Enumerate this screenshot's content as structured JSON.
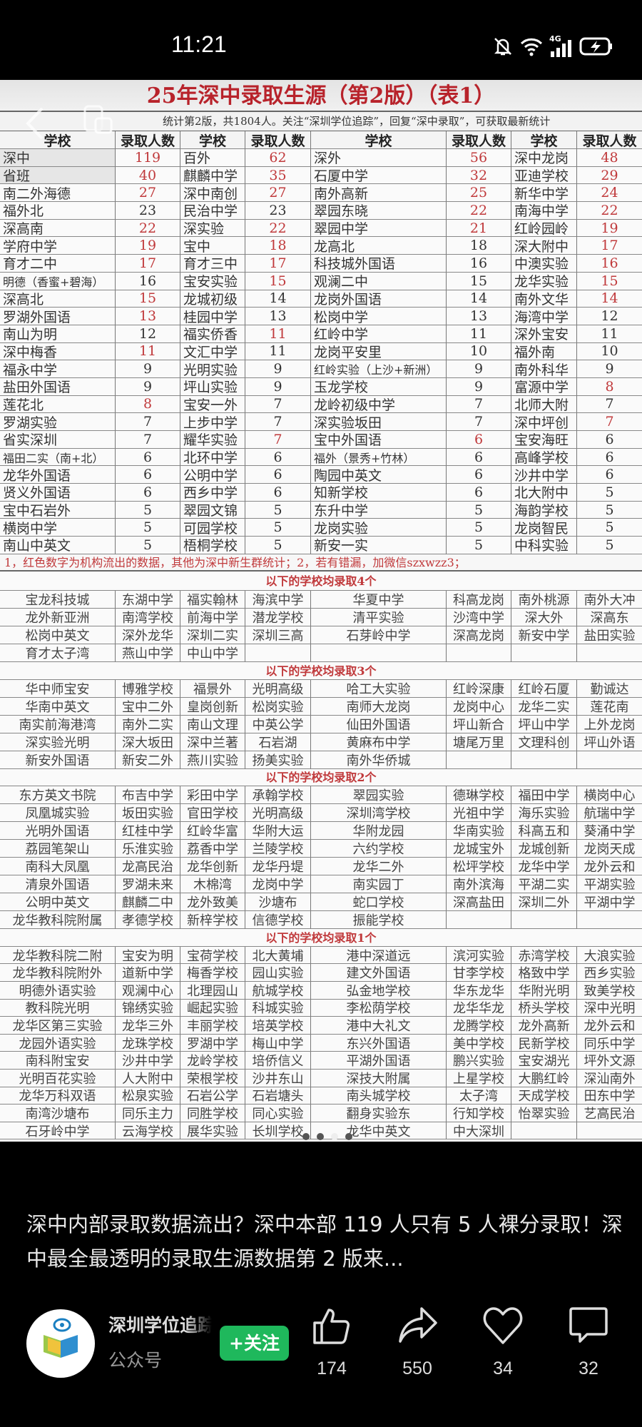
{
  "status_bar": {
    "time": "11:21",
    "network": "4G",
    "icons": [
      "mute-bell-icon",
      "wifi-icon",
      "signal-icon",
      "battery-charging-icon"
    ]
  },
  "sheet": {
    "title": "25年深中录取生源（第2版）（表1）",
    "subtitle": "统计第2版，共1804人。关注“深圳学位追踪”，回复“深中录取”，可获取最新统计",
    "headers": [
      "学校",
      "录取人数",
      "学校",
      "录取人数",
      "学校",
      "录取人数",
      "学校",
      "录取人数"
    ],
    "red_color": "#c0393b",
    "rows": [
      [
        {
          "s": "深中",
          "n": 119,
          "red": true
        },
        {
          "s": "百外",
          "n": 62,
          "red": true
        },
        {
          "s": "深外",
          "n": 56,
          "red": true
        },
        {
          "s": "深中龙岗",
          "n": 48,
          "red": true
        }
      ],
      [
        {
          "s": "省班",
          "n": 40,
          "red": true
        },
        {
          "s": "麒麟中学",
          "n": 35,
          "red": true
        },
        {
          "s": "石厦中学",
          "n": 32,
          "red": true
        },
        {
          "s": "亚迪学校",
          "n": 29,
          "red": true
        }
      ],
      [
        {
          "s": "南二外海德",
          "n": 27,
          "red": true
        },
        {
          "s": "深中南创",
          "n": 27,
          "red": true
        },
        {
          "s": "南外高新",
          "n": 25,
          "red": true
        },
        {
          "s": "新华中学",
          "n": 24,
          "red": true
        }
      ],
      [
        {
          "s": "福外北",
          "n": 23,
          "red": false
        },
        {
          "s": "民治中学",
          "n": 23,
          "red": false
        },
        {
          "s": "翠园东晓",
          "n": 22,
          "red": true
        },
        {
          "s": "南海中学",
          "n": 22,
          "red": true
        }
      ],
      [
        {
          "s": "深高南",
          "n": 22,
          "red": true
        },
        {
          "s": "深实验",
          "n": 22,
          "red": true
        },
        {
          "s": "翠园中学",
          "n": 21,
          "red": true
        },
        {
          "s": "红岭园岭",
          "n": 19,
          "red": true
        }
      ],
      [
        {
          "s": "学府中学",
          "n": 19,
          "red": true
        },
        {
          "s": "宝中",
          "n": 18,
          "red": true
        },
        {
          "s": "龙高北",
          "n": 18,
          "red": false
        },
        {
          "s": "深大附中",
          "n": 17,
          "red": true
        }
      ],
      [
        {
          "s": "育才二中",
          "n": 17,
          "red": true
        },
        {
          "s": "育才三中",
          "n": 17,
          "red": true
        },
        {
          "s": "科技城外国语",
          "n": 16,
          "red": false
        },
        {
          "s": "中澳实验",
          "n": 16,
          "red": true
        }
      ],
      [
        {
          "s": "明德（香蜜+碧海）",
          "n": 16,
          "red": false
        },
        {
          "s": "宝安实验",
          "n": 15,
          "red": true
        },
        {
          "s": "观澜二中",
          "n": 15,
          "red": false
        },
        {
          "s": "龙华实验",
          "n": 15,
          "red": true
        }
      ],
      [
        {
          "s": "深高北",
          "n": 15,
          "red": true
        },
        {
          "s": "龙城初级",
          "n": 14,
          "red": false
        },
        {
          "s": "龙岗外国语",
          "n": 14,
          "red": false
        },
        {
          "s": "南外文华",
          "n": 14,
          "red": true
        }
      ],
      [
        {
          "s": "罗湖外国语",
          "n": 13,
          "red": true
        },
        {
          "s": "桂园中学",
          "n": 13,
          "red": false
        },
        {
          "s": "松岗中学",
          "n": 13,
          "red": false
        },
        {
          "s": "海湾中学",
          "n": 12,
          "red": false
        }
      ],
      [
        {
          "s": "南山为明",
          "n": 12,
          "red": false
        },
        {
          "s": "福实侨香",
          "n": 11,
          "red": true
        },
        {
          "s": "红岭中学",
          "n": 11,
          "red": false
        },
        {
          "s": "深外宝安",
          "n": 11,
          "red": false
        }
      ],
      [
        {
          "s": "深中梅香",
          "n": 11,
          "red": true
        },
        {
          "s": "文汇中学",
          "n": 11,
          "red": false
        },
        {
          "s": "龙岗平安里",
          "n": 10,
          "red": false
        },
        {
          "s": "福外南",
          "n": 10,
          "red": false
        }
      ],
      [
        {
          "s": "福永中学",
          "n": 9,
          "red": false
        },
        {
          "s": "光明实验",
          "n": 9,
          "red": false
        },
        {
          "s": "红岭实验（上沙+新洲）",
          "n": 9,
          "red": false
        },
        {
          "s": "南外科华",
          "n": 9,
          "red": false
        }
      ],
      [
        {
          "s": "盐田外国语",
          "n": 9,
          "red": false
        },
        {
          "s": "坪山实验",
          "n": 9,
          "red": false
        },
        {
          "s": "玉龙学校",
          "n": 9,
          "red": false
        },
        {
          "s": "富源中学",
          "n": 8,
          "red": true
        }
      ],
      [
        {
          "s": "莲花北",
          "n": 8,
          "red": true
        },
        {
          "s": "宝安一外",
          "n": 7,
          "red": false
        },
        {
          "s": "龙岭初级中学",
          "n": 7,
          "red": false
        },
        {
          "s": "北师大附",
          "n": 7,
          "red": false
        }
      ],
      [
        {
          "s": "罗湖实验",
          "n": 7,
          "red": false
        },
        {
          "s": "上步中学",
          "n": 7,
          "red": false
        },
        {
          "s": "深实验坂田",
          "n": 7,
          "red": false
        },
        {
          "s": "深中坪创",
          "n": 7,
          "red": true
        }
      ],
      [
        {
          "s": "省实深圳",
          "n": 7,
          "red": false
        },
        {
          "s": "耀华实验",
          "n": 7,
          "red": true
        },
        {
          "s": "宝中外国语",
          "n": 6,
          "red": true
        },
        {
          "s": "宝安海旺",
          "n": 6,
          "red": false
        }
      ],
      [
        {
          "s": "福田二实（南+北）",
          "n": 6,
          "red": false
        },
        {
          "s": "北环中学",
          "n": 6,
          "red": false
        },
        {
          "s": "福外（景秀+竹林）",
          "n": 6,
          "red": false
        },
        {
          "s": "高峰学校",
          "n": 6,
          "red": false
        }
      ],
      [
        {
          "s": "龙华外国语",
          "n": 6,
          "red": false
        },
        {
          "s": "公明中学",
          "n": 6,
          "red": false
        },
        {
          "s": "陶园中英文",
          "n": 6,
          "red": false
        },
        {
          "s": "沙井中学",
          "n": 6,
          "red": false
        }
      ],
      [
        {
          "s": "贤义外国语",
          "n": 6,
          "red": false
        },
        {
          "s": "西乡中学",
          "n": 6,
          "red": false
        },
        {
          "s": "知新学校",
          "n": 6,
          "red": false
        },
        {
          "s": "北大附中",
          "n": 5,
          "red": false
        }
      ],
      [
        {
          "s": "宝中石岩外",
          "n": 5,
          "red": false
        },
        {
          "s": "翠园文锦",
          "n": 5,
          "red": false
        },
        {
          "s": "东升中学",
          "n": 5,
          "red": false
        },
        {
          "s": "海韵学校",
          "n": 5,
          "red": false
        }
      ],
      [
        {
          "s": "横岗中学",
          "n": 5,
          "red": false
        },
        {
          "s": "可园学校",
          "n": 5,
          "red": false
        },
        {
          "s": "龙岗实验",
          "n": 5,
          "red": false
        },
        {
          "s": "龙岗智民",
          "n": 5,
          "red": false
        }
      ],
      [
        {
          "s": "南山中英文",
          "n": 5,
          "red": false
        },
        {
          "s": "梧桐学校",
          "n": 5,
          "red": false
        },
        {
          "s": "新安一实",
          "n": 5,
          "red": false
        },
        {
          "s": "中科实验",
          "n": 5,
          "red": false
        }
      ]
    ],
    "note": "1，红色数字为机构流出的数据，其他为深中新生群统计；2，若有错漏，加微信szxwzz3；",
    "sections": [
      {
        "title": "以下的学校均录取4个",
        "rows": [
          [
            "宝龙科技城",
            "东湖中学",
            "福实翰林",
            "海滨中学",
            "华夏中学",
            "科高龙岗",
            "南外桃源",
            "南外大冲"
          ],
          [
            "龙外新亚洲",
            "南湾学校",
            "前海中学",
            "潜龙学校",
            "清平实验",
            "沙湾中学",
            "深大外",
            "深高东"
          ],
          [
            "松岗中英文",
            "深外龙华",
            "深圳二实",
            "深圳三高",
            "石芽岭中学",
            "深高龙岗",
            "新安中学",
            "盐田实验"
          ],
          [
            "育才太子湾",
            "燕山中学",
            "中山中学",
            "",
            "",
            "",
            "",
            ""
          ]
        ]
      },
      {
        "title": "以下的学校均录取3个",
        "rows": [
          [
            "华中师宝安",
            "博雅学校",
            "福景外",
            "光明高级",
            "哈工大实验",
            "红岭深康",
            "红岭石厦",
            "勤诚达"
          ],
          [
            "华南中英文",
            "宝中二外",
            "皇岗创新",
            "松岗实验",
            "南师大龙岗",
            "龙岗中心",
            "龙华二实",
            "莲花南"
          ],
          [
            "南实前海港湾",
            "南外二实",
            "南山文理",
            "中英公学",
            "仙田外国语",
            "坪山新合",
            "坪山中学",
            "上外龙岗"
          ],
          [
            "深实验光明",
            "深大坂田",
            "深中兰著",
            "石岩湖",
            "黄麻布中学",
            "塘尾万里",
            "文理科创",
            "坪山外语"
          ],
          [
            "新安外国语",
            "新安二外",
            "燕川实验",
            "扬美实验",
            "南外华侨城",
            "",
            "",
            ""
          ]
        ]
      },
      {
        "title": "以下的学校均录取2个",
        "rows": [
          [
            "东方英文书院",
            "布吉中学",
            "彩田中学",
            "承翰学校",
            "翠园实验",
            "德琳学校",
            "福田中学",
            "横岗中心"
          ],
          [
            "凤凰城实验",
            "坂田实验",
            "官田学校",
            "光明高级",
            "深圳湾学校",
            "光祖中学",
            "海乐实验",
            "航瑞中学"
          ],
          [
            "光明外国语",
            "红桂中学",
            "红岭华富",
            "华附大运",
            "华附龙园",
            "华南实验",
            "科高五和",
            "葵涌中学"
          ],
          [
            "荔园笔架山",
            "乐淮实验",
            "荔香中学",
            "兰陵学校",
            "六约学校",
            "龙城宝外",
            "龙城创新",
            "龙岗天成"
          ],
          [
            "南科大凤凰",
            "龙高民治",
            "龙华创新",
            "龙华丹堤",
            "龙华二外",
            "松坪学校",
            "龙华中学",
            "龙外云和"
          ],
          [
            "清泉外国语",
            "罗湖未来",
            "木棉湾",
            "龙岗中学",
            "南实园丁",
            "南外滨海",
            "平湖二实",
            "平湖实验"
          ],
          [
            "公明中英文",
            "麒麟二中",
            "龙外致美",
            "沙塘布",
            "蛇口学校",
            "深高盐田",
            "深圳二外",
            "平湖中学"
          ],
          [
            "龙华教科院附属",
            "孝德学校",
            "新梓学校",
            "信德学校",
            "振能学校",
            "",
            "",
            ""
          ]
        ]
      },
      {
        "title": "以下的学校均录取1个",
        "rows": [
          [
            "龙华教科院二附",
            "宝安为明",
            "宝荷学校",
            "北大黄埔",
            "港中深道远",
            "滨河实验",
            "赤湾学校",
            "大浪实验"
          ],
          [
            "龙华教科院附外",
            "道新中学",
            "梅香学校",
            "园山实验",
            "建文外国语",
            "甘李学校",
            "格致中学",
            "西乡实验"
          ],
          [
            "明德外语实验",
            "观澜中心",
            "北理园山",
            "航城学校",
            "弘金地学校",
            "华东龙华",
            "华附光明",
            "致美学校"
          ],
          [
            "教科院光明",
            "锦绣实验",
            "崛起实验",
            "科城实验",
            "李松荫学校",
            "龙华华龙",
            "桥头学校",
            "深中光明"
          ],
          [
            "龙华区第三实验",
            "龙华三外",
            "丰丽学校",
            "培英学校",
            "港中大礼文",
            "龙腾学校",
            "龙外高新",
            "龙外云和"
          ],
          [
            "龙园外语实验",
            "龙珠学校",
            "罗湖中学",
            "梅山中学",
            "东兴外国语",
            "美中学校",
            "民新学校",
            "同乐中学"
          ],
          [
            "南科附宝安",
            "沙井中学",
            "龙岭学校",
            "培侨信义",
            "平湖外国语",
            "鹏兴实验",
            "宝安湖光",
            "坪外文源"
          ],
          [
            "光明百花实验",
            "人大附中",
            "荣根学校",
            "沙井东山",
            "深技大附属",
            "上星学校",
            "大鹏红岭",
            "深汕南外"
          ],
          [
            "龙华万科双语",
            "松泉实验",
            "石岩公学",
            "石岩塘头",
            "南头城学校",
            "太子湾",
            "天成学校",
            "田东中学"
          ],
          [
            "南湾沙塘布",
            "同乐主力",
            "同胜学校",
            "同心实验",
            "翻身实验东",
            "行知学校",
            "怡翠实验",
            "艺高民治"
          ],
          [
            "石牙岭中学",
            "云海学校",
            "展华实验",
            "长圳学校",
            "龙华中英文",
            "中大深圳",
            "",
            ""
          ]
        ]
      }
    ],
    "watermark": "深圳学位追踪"
  },
  "carousel": {
    "count": 4,
    "active": 3
  },
  "article": {
    "caption": "深中内部录取数据流出？深中本部 119 人只有 5 人裸分录取！深中最全最透明的录取生源数据第 2 版来..."
  },
  "account": {
    "name": "深圳学位追踪",
    "type": "公众号",
    "follow_label": "+关注",
    "avatar_text": "深圳学位追踪",
    "follow_color": "#1fb85c"
  },
  "actions": [
    {
      "icon": "thumbs-up-icon",
      "count": "174"
    },
    {
      "icon": "share-icon",
      "count": "550"
    },
    {
      "icon": "heart-icon",
      "count": "34"
    },
    {
      "icon": "comment-icon",
      "count": "32"
    }
  ]
}
